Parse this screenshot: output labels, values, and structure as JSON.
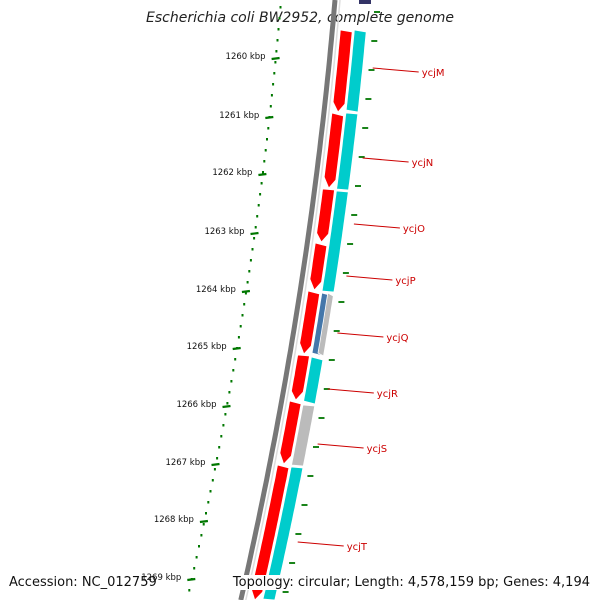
{
  "header": {
    "title": "Escherichia coli BW2952, complete genome"
  },
  "footer": {
    "accession": "Accession: NC_012759",
    "summary": "Topology: circular; Length: 4,578,159 bp; Genes: 4,194"
  },
  "scale": {
    "unit": "kbp",
    "ticks": [
      "1260 kbp",
      "1261 kbp",
      "1262 kbp",
      "1263 kbp",
      "1264 kbp",
      "1265 kbp",
      "1266 kbp",
      "1267 kbp",
      "1268 kbp",
      "1269 kbp"
    ]
  },
  "genes": [
    {
      "name": "ycjM"
    },
    {
      "name": "ycjN"
    },
    {
      "name": "ycjO"
    },
    {
      "name": "ycjP"
    },
    {
      "name": "ycjQ"
    },
    {
      "name": "ycjR"
    },
    {
      "name": "ycjS"
    },
    {
      "name": "ycjT"
    }
  ],
  "colors": {
    "cds_forward": "#ff0000",
    "cds_cyan": "#00cccc",
    "cds_gray": "#bbbbbb",
    "cds_blue": "#4477aa",
    "backbone": "#777777",
    "tick": "#007700",
    "label": "#cc0000"
  }
}
